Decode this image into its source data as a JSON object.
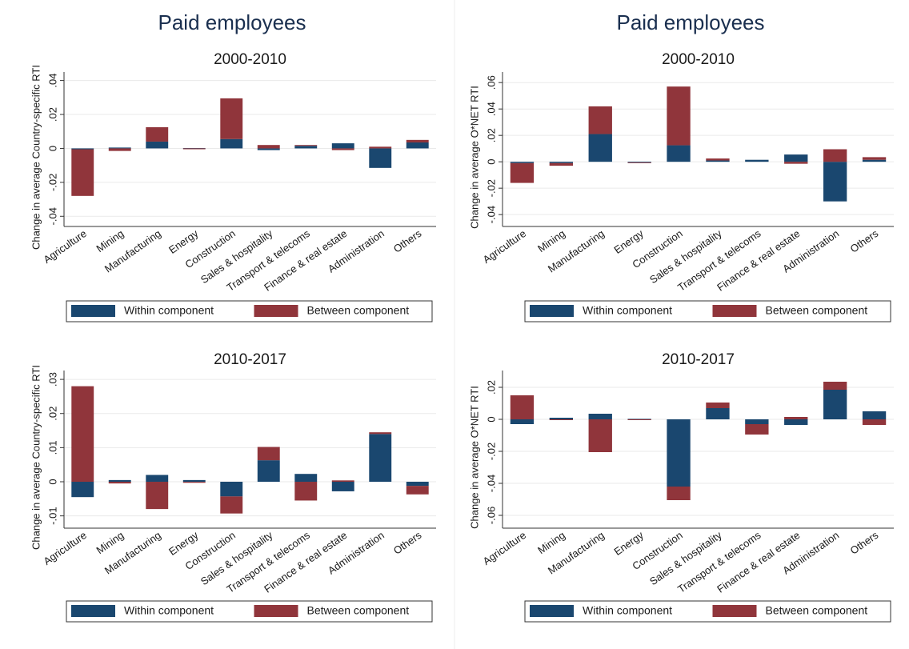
{
  "chart_data": [
    {
      "type": "bar",
      "title": "Paid employees",
      "subtitle": "2000-2010",
      "y_label": "Change in average Country-specific RTI",
      "categories": [
        "Agriculture",
        "Mining",
        "Manufacturing",
        "Energy",
        "Construction",
        "Sales & hospitality",
        "Transport & telecoms",
        "Finance & real estate",
        "Administration",
        "Others"
      ],
      "series": [
        {
          "name": "Within component",
          "color": "#1a476f",
          "values": [
            -0.0005,
            0.0005,
            0.004,
            0.0002,
            0.0055,
            -0.001,
            0.0015,
            0.003,
            -0.0115,
            0.0035
          ]
        },
        {
          "name": "Between component",
          "color": "#90353b",
          "values": [
            -0.0275,
            -0.0015,
            0.0085,
            -0.0005,
            0.024,
            0.002,
            0.0005,
            -0.001,
            0.001,
            0.0015
          ]
        }
      ],
      "ylim": [
        -0.046,
        0.045
      ],
      "yticks": [
        {
          "value": -0.04,
          "label": "-.04"
        },
        {
          "value": -0.02,
          "label": "-.02"
        },
        0,
        {
          "value": 0.02,
          "label": ".02"
        },
        {
          "value": 0.04,
          "label": ".04"
        }
      ],
      "grid": true,
      "stacked": true,
      "legend_position": "bottom"
    },
    {
      "type": "bar",
      "title": "Paid employees",
      "subtitle": "2000-2010",
      "y_label": "Change in average O*NET RTI",
      "categories": [
        "Agriculture",
        "Mining",
        "Manufacturing",
        "Energy",
        "Construction",
        "Sales & hospitality",
        "Transport & telecoms",
        "Finance & real estate",
        "Administration",
        "Others"
      ],
      "series": [
        {
          "name": "Within component",
          "color": "#1a476f",
          "values": [
            -0.001,
            -0.001,
            0.021,
            -0.0005,
            0.0125,
            0.001,
            0.0015,
            0.0055,
            -0.03,
            0.0015
          ]
        },
        {
          "name": "Between component",
          "color": "#90353b",
          "values": [
            -0.015,
            -0.002,
            0.021,
            -0.0005,
            0.0445,
            0.0015,
            0,
            -0.0015,
            0.0095,
            0.002
          ]
        }
      ],
      "ylim": [
        -0.049,
        0.068
      ],
      "yticks": [
        {
          "value": -0.04,
          "label": "-.04"
        },
        {
          "value": -0.02,
          "label": "-.02"
        },
        0,
        {
          "value": 0.02,
          "label": ".02"
        },
        {
          "value": 0.04,
          "label": ".04"
        },
        {
          "value": 0.06,
          "label": ".06"
        }
      ],
      "grid": true,
      "stacked": true,
      "legend_position": "bottom"
    },
    {
      "type": "bar",
      "subtitle": "2010-2017",
      "y_label": "Change in average Country-specific RTI",
      "categories": [
        "Agriculture",
        "Mining",
        "Manufacturing",
        "Energy",
        "Construction",
        "Sales & hospitality",
        "Transport & telecoms",
        "Finance & real estate",
        "Administration",
        "Others"
      ],
      "series": [
        {
          "name": "Within component",
          "color": "#1a476f",
          "values": [
            -0.0045,
            0.0005,
            0.002,
            0.0005,
            -0.0043,
            0.0063,
            0.0023,
            -0.0028,
            0.014,
            -0.0012
          ]
        },
        {
          "name": "Between component",
          "color": "#90353b",
          "values": [
            0.028,
            -0.0005,
            -0.008,
            -0.0003,
            -0.005,
            0.0039,
            -0.0055,
            0.0004,
            0.0005,
            -0.0025
          ]
        }
      ],
      "ylim": [
        -0.0136,
        0.0326
      ],
      "yticks": [
        {
          "value": -0.01,
          "label": "-.01"
        },
        0,
        {
          "value": 0.01,
          "label": ".01"
        },
        {
          "value": 0.02,
          "label": ".02"
        },
        {
          "value": 0.03,
          "label": ".03"
        }
      ],
      "grid": true,
      "stacked": true,
      "legend_position": "bottom"
    },
    {
      "type": "bar",
      "subtitle": "2010-2017",
      "y_label": "Change in average O*NET RTI",
      "categories": [
        "Agriculture",
        "Mining",
        "Manufacturing",
        "Energy",
        "Construction",
        "Sales & hospitality",
        "Transport & telecoms",
        "Finance & real estate",
        "Administration",
        "Others"
      ],
      "series": [
        {
          "name": "Within component",
          "color": "#1a476f",
          "values": [
            -0.003,
            0.001,
            0.0035,
            0.0003,
            -0.042,
            0.007,
            -0.003,
            -0.0035,
            0.0185,
            0.005
          ]
        },
        {
          "name": "Between component",
          "color": "#90353b",
          "values": [
            0.015,
            -0.0005,
            -0.0205,
            -0.0005,
            -0.0085,
            0.0035,
            -0.0065,
            0.0015,
            0.005,
            -0.0035
          ]
        }
      ],
      "ylim": [
        -0.068,
        0.0305
      ],
      "yticks": [
        {
          "value": -0.06,
          "label": "-.06"
        },
        {
          "value": -0.04,
          "label": "-.04"
        },
        {
          "value": -0.02,
          "label": "-.02"
        },
        0,
        {
          "value": 0.02,
          "label": ".02"
        }
      ],
      "grid": true,
      "stacked": true,
      "legend_position": "bottom"
    }
  ]
}
